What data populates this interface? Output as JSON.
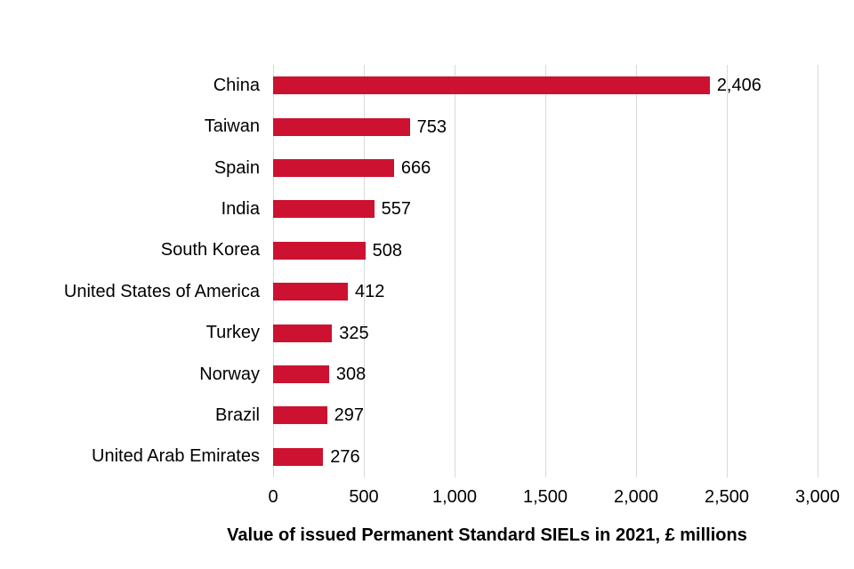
{
  "chart_data": {
    "type": "bar",
    "orientation": "horizontal",
    "categories": [
      "China",
      "Taiwan",
      "Spain",
      "India",
      "South Korea",
      "United States of America",
      "Turkey",
      "Norway",
      "Brazil",
      "United Arab Emirates"
    ],
    "values": [
      2406,
      753,
      666,
      557,
      508,
      412,
      325,
      308,
      297,
      276
    ],
    "value_labels": [
      "2,406",
      "753",
      "666",
      "557",
      "508",
      "412",
      "325",
      "308",
      "297",
      "276"
    ],
    "title": "",
    "xlabel": "Value of issued Permanent Standard SIELs in 2021, £ millions",
    "ylabel": "",
    "xlim": [
      0,
      3000
    ],
    "x_ticks": [
      0,
      500,
      1000,
      1500,
      2000,
      2500,
      3000
    ],
    "x_tick_labels": [
      "0",
      "500",
      "1,000",
      "1,500",
      "2,000",
      "2,500",
      "3,000"
    ],
    "grid": "vertical-gridlines-on",
    "legend": "none",
    "colors": {
      "bar": "#CC1230",
      "gridline": "#D9D9D9",
      "text": "#000000",
      "background": "#FFFFFF"
    }
  }
}
